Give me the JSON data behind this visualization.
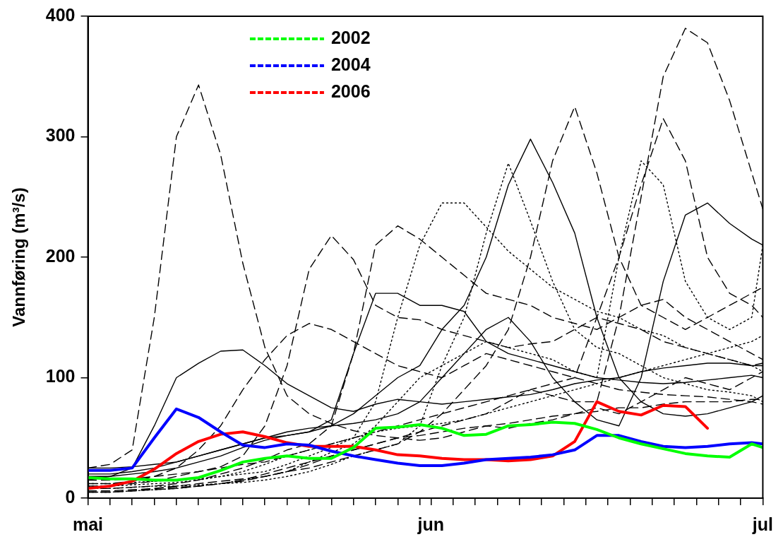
{
  "chart_data": {
    "type": "line",
    "ylabel": "Vannføring (m³/s)",
    "x": [
      "--05-01",
      "--05-03",
      "--05-05",
      "--05-07",
      "--05-09",
      "--05-11",
      "--05-13",
      "--05-15",
      "--05-17",
      "--05-19",
      "--05-21",
      "--05-23",
      "--05-25",
      "--05-27",
      "--05-29",
      "--05-31",
      "--06-02",
      "--06-04",
      "--06-06",
      "--06-08",
      "--06-10",
      "--06-12",
      "--06-14",
      "--06-16",
      "--06-18",
      "--06-20",
      "--06-22",
      "--06-24",
      "--06-26",
      "--06-28",
      "--06-30",
      "--07-01"
    ],
    "xlim": [
      "--05-01",
      "--07-01"
    ],
    "xticks": [
      {
        "value": "--05-01",
        "label": "mai"
      },
      {
        "value": "--05-03",
        "label": null
      },
      {
        "value": "--05-05",
        "label": null
      },
      {
        "value": "--05-07",
        "label": null
      },
      {
        "value": "--05-09",
        "label": null
      },
      {
        "value": "--05-11",
        "label": null
      },
      {
        "value": "--05-13",
        "label": null
      },
      {
        "value": "--05-15",
        "label": null
      },
      {
        "value": "--05-17",
        "label": null
      },
      {
        "value": "--05-19",
        "label": null
      },
      {
        "value": "--05-21",
        "label": null
      },
      {
        "value": "--05-23",
        "label": null
      },
      {
        "value": "--05-25",
        "label": null
      },
      {
        "value": "--05-27",
        "label": null
      },
      {
        "value": "--05-29",
        "label": null
      },
      {
        "value": "--05-31",
        "label": null
      },
      {
        "value": "--06-01",
        "label": "jun"
      },
      {
        "value": "--06-03",
        "label": null
      },
      {
        "value": "--06-05",
        "label": null
      },
      {
        "value": "--06-07",
        "label": null
      },
      {
        "value": "--06-09",
        "label": null
      },
      {
        "value": "--06-11",
        "label": null
      },
      {
        "value": "--06-13",
        "label": null
      },
      {
        "value": "--06-15",
        "label": null
      },
      {
        "value": "--06-17",
        "label": null
      },
      {
        "value": "--06-19",
        "label": null
      },
      {
        "value": "--06-21",
        "label": null
      },
      {
        "value": "--06-23",
        "label": null
      },
      {
        "value": "--06-25",
        "label": null
      },
      {
        "value": "--06-27",
        "label": null
      },
      {
        "value": "--06-29",
        "label": null
      },
      {
        "value": "--07-01",
        "label": "jul"
      }
    ],
    "ylim": [
      0,
      400
    ],
    "yticks": [
      0,
      100,
      200,
      300,
      400
    ],
    "grid": false,
    "legend": "top left",
    "marker": "none",
    "series": [
      {
        "color": "#000000",
        "line_style": "dashed",
        "values": [
          25,
          28,
          40,
          150,
          300,
          343,
          285,
          195,
          125,
          85,
          70,
          62,
          56,
          52,
          50,
          48,
          50,
          55,
          60,
          58,
          62,
          65,
          70,
          75,
          70,
          80,
          90,
          100,
          95,
          90,
          100,
          105
        ]
      },
      {
        "color": "#000000",
        "line_style": "solid",
        "values": [
          15,
          18,
          25,
          60,
          100,
          112,
          122,
          123,
          110,
          95,
          85,
          75,
          72,
          78,
          82,
          80,
          78,
          80,
          82,
          84,
          86,
          90,
          95,
          98,
          100,
          105,
          108,
          110,
          112,
          112,
          110,
          110
        ]
      },
      {
        "color": "#000000",
        "line_style": "dashed",
        "values": [
          10,
          10,
          12,
          14,
          18,
          22,
          26,
          35,
          60,
          110,
          190,
          218,
          198,
          160,
          150,
          148,
          140,
          135,
          130,
          125,
          128,
          130,
          140,
          150,
          145,
          140,
          130,
          125,
          120,
          115,
          110,
          112
        ]
      },
      {
        "color": "#000000",
        "line_style": "dashed",
        "values": [
          8,
          8,
          9,
          10,
          12,
          15,
          20,
          25,
          32,
          40,
          45,
          60,
          120,
          210,
          226,
          215,
          200,
          185,
          170,
          165,
          160,
          150,
          145,
          140,
          150,
          160,
          165,
          150,
          140,
          130,
          120,
          115
        ]
      },
      {
        "color": "#000000",
        "line_style": "dotted",
        "values": [
          12,
          12,
          13,
          14,
          15,
          16,
          18,
          20,
          22,
          28,
          35,
          42,
          50,
          80,
          150,
          210,
          245,
          245,
          225,
          205,
          190,
          175,
          165,
          155,
          150,
          140,
          135,
          125,
          120,
          115,
          110,
          105
        ]
      },
      {
        "color": "#000000",
        "line_style": "solid",
        "values": [
          18,
          18,
          20,
          22,
          25,
          30,
          35,
          42,
          48,
          52,
          55,
          60,
          70,
          85,
          100,
          110,
          140,
          160,
          200,
          260,
          298,
          262,
          220,
          150,
          100,
          80,
          70,
          68,
          70,
          75,
          80,
          85
        ]
      },
      {
        "color": "#000000",
        "line_style": "dashed",
        "values": [
          5,
          5,
          6,
          8,
          10,
          12,
          14,
          16,
          18,
          22,
          25,
          30,
          35,
          40,
          45,
          55,
          70,
          90,
          110,
          140,
          200,
          280,
          325,
          270,
          200,
          160,
          150,
          140,
          150,
          160,
          170,
          175
        ]
      },
      {
        "color": "#000000",
        "line_style": "dashed",
        "values": [
          6,
          6,
          7,
          8,
          9,
          10,
          12,
          14,
          18,
          22,
          28,
          35,
          40,
          45,
          50,
          55,
          60,
          65,
          70,
          80,
          90,
          95,
          100,
          150,
          200,
          260,
          315,
          280,
          200,
          170,
          160,
          150
        ]
      },
      {
        "color": "#000000",
        "line_style": "dashed",
        "values": [
          15,
          15,
          16,
          18,
          20,
          22,
          25,
          28,
          30,
          35,
          40,
          45,
          50,
          55,
          60,
          65,
          70,
          75,
          80,
          85,
          90,
          85,
          80,
          80,
          150,
          250,
          350,
          390,
          378,
          330,
          270,
          240
        ]
      },
      {
        "color": "#000000",
        "line_style": "dotted",
        "values": [
          5,
          5,
          6,
          7,
          8,
          10,
          12,
          15,
          18,
          22,
          30,
          38,
          45,
          60,
          80,
          100,
          110,
          120,
          130,
          125,
          120,
          115,
          105,
          100,
          200,
          280,
          260,
          180,
          150,
          140,
          150,
          210
        ]
      },
      {
        "color": "#000000",
        "line_style": "solid",
        "values": [
          20,
          20,
          22,
          25,
          30,
          35,
          40,
          45,
          50,
          55,
          58,
          60,
          62,
          65,
          70,
          80,
          100,
          120,
          140,
          150,
          130,
          100,
          80,
          65,
          60,
          100,
          180,
          235,
          245,
          228,
          215,
          210
        ]
      },
      {
        "color": "#000000",
        "line_style": "dotted",
        "values": [
          8,
          8,
          9,
          10,
          10,
          11,
          12,
          13,
          15,
          18,
          22,
          28,
          35,
          40,
          45,
          60,
          110,
          150,
          220,
          278,
          230,
          180,
          140,
          125,
          120,
          110,
          100,
          95,
          90,
          88,
          85,
          80
        ]
      },
      {
        "color": "#000000",
        "line_style": "solid",
        "values": [
          25,
          25,
          26,
          28,
          30,
          35,
          40,
          45,
          50,
          52,
          55,
          65,
          120,
          170,
          170,
          160,
          160,
          155,
          130,
          120,
          115,
          110,
          105,
          100,
          98,
          96,
          95,
          96,
          98,
          100,
          102,
          100
        ]
      },
      {
        "color": "#000000",
        "line_style": "dashed",
        "values": [
          5,
          5,
          6,
          7,
          8,
          10,
          12,
          15,
          20,
          25,
          30,
          35,
          40,
          45,
          50,
          52,
          55,
          58,
          60,
          62,
          65,
          68,
          70,
          72,
          75,
          75,
          78,
          80,
          80,
          80,
          82,
          82
        ]
      },
      {
        "color": "#000000",
        "line_style": "dotted",
        "values": [
          10,
          10,
          11,
          12,
          13,
          15,
          18,
          22,
          28,
          35,
          40,
          45,
          50,
          55,
          58,
          60,
          62,
          65,
          70,
          75,
          80,
          85,
          90,
          95,
          100,
          105,
          110,
          115,
          120,
          125,
          130,
          135
        ]
      },
      {
        "color": "#000000",
        "line_style": "dashed",
        "values": [
          12,
          12,
          14,
          18,
          25,
          40,
          60,
          90,
          115,
          135,
          145,
          140,
          130,
          120,
          110,
          105,
          100,
          110,
          120,
          115,
          110,
          105,
          100,
          95,
          90,
          88,
          86,
          85,
          84,
          82,
          80,
          78
        ]
      },
      {
        "name": "2002",
        "color": "#00ff00",
        "values": [
          17,
          16,
          16,
          15,
          15,
          17,
          23,
          30,
          33,
          35,
          33,
          33,
          42,
          58,
          59,
          61,
          58,
          52,
          53,
          60,
          61,
          63,
          62,
          57,
          50,
          45,
          41,
          37,
          35,
          34,
          45,
          42
        ]
      },
      {
        "name": "2004",
        "color": "#0000ff",
        "values": [
          23,
          23,
          25,
          50,
          74,
          67,
          55,
          44,
          42,
          45,
          44,
          39,
          35,
          32,
          29,
          27,
          27,
          29,
          32,
          33,
          34,
          36,
          40,
          52,
          52,
          47,
          43,
          42,
          43,
          45,
          46,
          45
        ]
      },
      {
        "name": "2006",
        "color": "#ff0000",
        "values": [
          8,
          10,
          14,
          24,
          37,
          47,
          53,
          55,
          51,
          46,
          43,
          43,
          43,
          40,
          36,
          35,
          33,
          32,
          32,
          31,
          32,
          35,
          47,
          80,
          72,
          69,
          77,
          76,
          58,
          null,
          null,
          null
        ]
      }
    ]
  }
}
